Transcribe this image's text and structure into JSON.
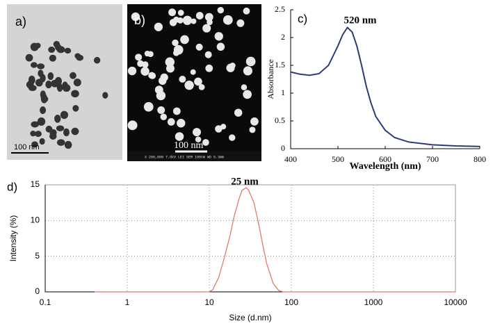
{
  "images": [
    {
      "label": "a)",
      "scale_bar": "100 nm"
    },
    {
      "label": "b)",
      "scale_bar": "100 nm",
      "info": "X 200,000   7.0kV  LEI  SEM   100nm  WD 5.3mm"
    }
  ],
  "chart_data": [
    {
      "type": "line",
      "label": "c)",
      "annotation": "520 nm",
      "xlabel": "Wavelength (nm)",
      "ylabel": "Absorbance",
      "x": [
        400,
        420,
        440,
        460,
        480,
        500,
        510,
        520,
        530,
        540,
        550,
        560,
        570,
        580,
        600,
        620,
        650,
        700,
        750,
        800
      ],
      "series": [
        {
          "color": "#2e3a78",
          "values": [
            1.38,
            1.34,
            1.32,
            1.35,
            1.5,
            1.85,
            2.05,
            2.18,
            2.1,
            1.85,
            1.5,
            1.12,
            0.82,
            0.58,
            0.33,
            0.2,
            0.12,
            0.07,
            0.05,
            0.04
          ]
        }
      ],
      "xlim": [
        400,
        800
      ],
      "xticks": [
        400,
        500,
        600,
        700,
        800
      ],
      "ylim": [
        0,
        2.5
      ],
      "yticks": [
        0,
        0.5,
        1,
        1.5,
        2,
        2.5
      ],
      "grid": false
    },
    {
      "type": "line",
      "label": "d)",
      "annotation": "25 nm",
      "xlabel": "Size (d.nm)",
      "ylabel": "Intensity (%)",
      "log_x": true,
      "x": [
        0.4,
        1,
        5,
        10,
        11,
        13,
        15,
        18,
        20,
        23,
        25,
        28,
        30,
        35,
        40,
        45,
        50,
        60,
        70,
        80,
        100,
        1000,
        10000
      ],
      "series": [
        {
          "color": "#e07a6a",
          "values": [
            0,
            0,
            0,
            0,
            0.3,
            2,
            4.5,
            8,
            10.5,
            13,
            14.2,
            14.6,
            14.3,
            12.5,
            9.5,
            6.5,
            4,
            1.2,
            0.2,
            0,
            0,
            0,
            0
          ]
        }
      ],
      "xlim": [
        0.1,
        10000
      ],
      "xticks": [
        0.1,
        1,
        10,
        100,
        1000,
        10000
      ],
      "ylim": [
        0,
        15
      ],
      "yticks": [
        0,
        5,
        10,
        15
      ],
      "grid": true
    }
  ]
}
